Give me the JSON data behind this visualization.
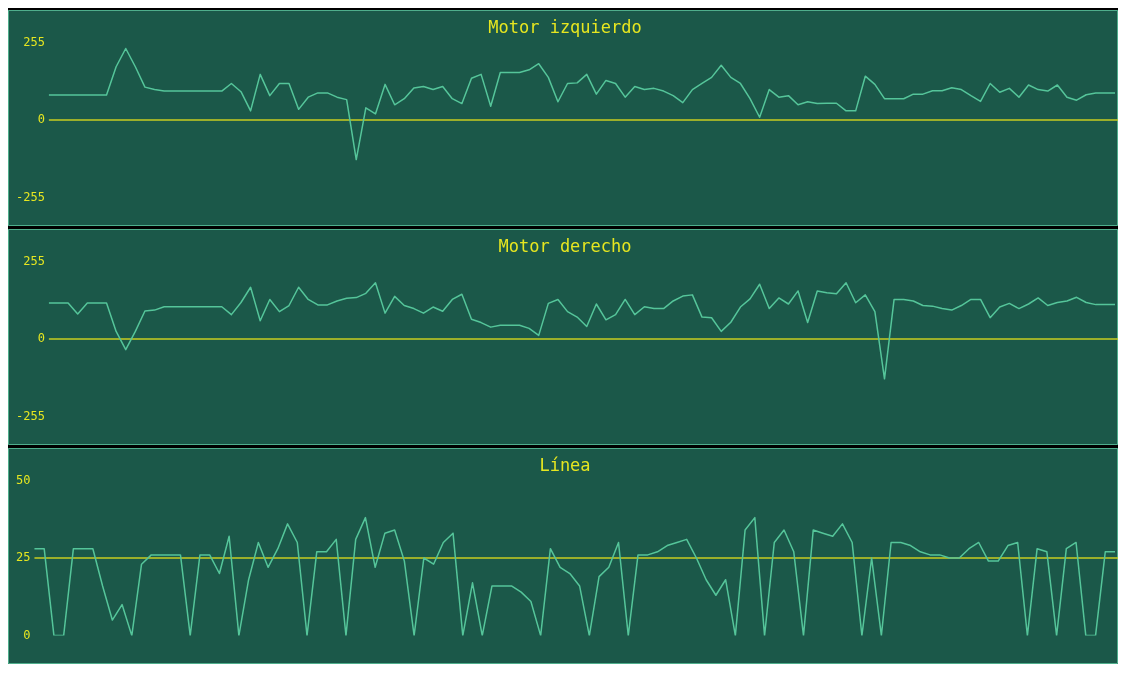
{
  "chart_data": [
    {
      "type": "line",
      "title": "Motor izquierdo",
      "categories": [
        null,
        null,
        null,
        null,
        null,
        null,
        null,
        null,
        null,
        null,
        null,
        null,
        null,
        null,
        null,
        null,
        null,
        null,
        null,
        null,
        null,
        null,
        null,
        null,
        null,
        null,
        null,
        null,
        null,
        null,
        null,
        null,
        null,
        null,
        null,
        null,
        null,
        null,
        null,
        null,
        null,
        null,
        null,
        null,
        null,
        null,
        null,
        null,
        null,
        null,
        null,
        null,
        null,
        null,
        null,
        null,
        null,
        null,
        null,
        null,
        null,
        null,
        null,
        null,
        null,
        null,
        null,
        null,
        null,
        null,
        null,
        null,
        null,
        null,
        null,
        null,
        null,
        null,
        null,
        null,
        null,
        null,
        null,
        null,
        null,
        null,
        null,
        null,
        null,
        null,
        null,
        null,
        null,
        null,
        null,
        null,
        null,
        null,
        null,
        null,
        null,
        null,
        null,
        null,
        null,
        null,
        null,
        null,
        null,
        null,
        null,
        null
      ],
      "series": [
        {
          "color": "#55c59a",
          "values": [
            82,
            82,
            82,
            82,
            82,
            82,
            82,
            175,
            235,
            175,
            108,
            100,
            95,
            95,
            95,
            95,
            95,
            95,
            95,
            120,
            93,
            30,
            150,
            80,
            120,
            120,
            35,
            75,
            89,
            89,
            75,
            67,
            -130,
            40,
            20,
            117,
            50,
            70,
            105,
            110,
            100,
            110,
            70,
            54,
            137,
            150,
            45,
            156,
            156,
            156,
            165,
            185,
            140,
            60,
            120,
            122,
            150,
            85,
            130,
            120,
            75,
            110,
            100,
            104,
            95,
            80,
            57,
            100,
            120,
            140,
            180,
            140,
            120,
            70,
            9,
            100,
            75,
            80,
            50,
            60,
            54,
            55,
            55,
            30,
            30,
            144,
            117,
            70,
            70,
            70,
            85,
            85,
            96,
            96,
            106,
            100,
            80,
            61,
            120,
            91,
            104,
            75,
            115,
            100,
            95,
            115,
            75,
            65,
            83,
            89,
            89,
            89
          ]
        }
      ],
      "ylim": [
        -255,
        255
      ],
      "yticks": [
        -255,
        0,
        255
      ],
      "ref_lines": [
        {
          "axis": "y",
          "value": 0,
          "color": "#c8cc20"
        }
      ],
      "grid": false,
      "legend": false
    },
    {
      "type": "line",
      "title": "Motor derecho",
      "categories": [
        null,
        null,
        null,
        null,
        null,
        null,
        null,
        null,
        null,
        null,
        null,
        null,
        null,
        null,
        null,
        null,
        null,
        null,
        null,
        null,
        null,
        null,
        null,
        null,
        null,
        null,
        null,
        null,
        null,
        null,
        null,
        null,
        null,
        null,
        null,
        null,
        null,
        null,
        null,
        null,
        null,
        null,
        null,
        null,
        null,
        null,
        null,
        null,
        null,
        null,
        null,
        null,
        null,
        null,
        null,
        null,
        null,
        null,
        null,
        null,
        null,
        null,
        null,
        null,
        null,
        null,
        null,
        null,
        null,
        null,
        null,
        null,
        null,
        null,
        null,
        null,
        null,
        null,
        null,
        null,
        null,
        null,
        null,
        null,
        null,
        null,
        null,
        null,
        null,
        null,
        null,
        null,
        null,
        null,
        null,
        null,
        null,
        null,
        null,
        null,
        null,
        null,
        null,
        null,
        null,
        null,
        null,
        null,
        null,
        null,
        null,
        null
      ],
      "series": [
        {
          "color": "#55c59a",
          "values": [
            118,
            118,
            118,
            82,
            118,
            118,
            118,
            25,
            -35,
            25,
            92,
            95,
            106,
            106,
            106,
            106,
            106,
            106,
            106,
            80,
            120,
            170,
            60,
            130,
            90,
            110,
            170,
            130,
            112,
            112,
            125,
            134,
            136,
            150,
            185,
            85,
            140,
            110,
            100,
            85,
            105,
            91,
            130,
            147,
            65,
            54,
            39,
            45,
            45,
            45,
            35,
            12,
            117,
            130,
            90,
            72,
            41,
            115,
            63,
            80,
            130,
            80,
            106,
            100,
            100,
            125,
            141,
            145,
            72,
            70,
            25,
            55,
            105,
            132,
            180,
            100,
            135,
            115,
            158,
            54,
            158,
            152,
            149,
            185,
            119,
            145,
            90,
            -131,
            130,
            130,
            125,
            110,
            108,
            100,
            95,
            110,
            130,
            130,
            70,
            105,
            117,
            100,
            115,
            135,
            110,
            120,
            125,
            137,
            120,
            113,
            113,
            113
          ]
        }
      ],
      "ylim": [
        -255,
        255
      ],
      "yticks": [
        -255,
        0,
        255
      ],
      "ref_lines": [
        {
          "axis": "y",
          "value": 0,
          "color": "#c8cc20"
        }
      ],
      "grid": false,
      "legend": false
    },
    {
      "type": "line",
      "title": "Línea",
      "categories": [
        null,
        null,
        null,
        null,
        null,
        null,
        null,
        null,
        null,
        null,
        null,
        null,
        null,
        null,
        null,
        null,
        null,
        null,
        null,
        null,
        null,
        null,
        null,
        null,
        null,
        null,
        null,
        null,
        null,
        null,
        null,
        null,
        null,
        null,
        null,
        null,
        null,
        null,
        null,
        null,
        null,
        null,
        null,
        null,
        null,
        null,
        null,
        null,
        null,
        null,
        null,
        null,
        null,
        null,
        null,
        null,
        null,
        null,
        null,
        null,
        null,
        null,
        null,
        null,
        null,
        null,
        null,
        null,
        null,
        null,
        null,
        null,
        null,
        null,
        null,
        null,
        null,
        null,
        null,
        null,
        null,
        null,
        null,
        null,
        null,
        null,
        null,
        null,
        null,
        null,
        null,
        null,
        null,
        null,
        null,
        null,
        null,
        null,
        null,
        null,
        null,
        null,
        null,
        null,
        null,
        null,
        null,
        null,
        null,
        null,
        null,
        null
      ],
      "series": [
        {
          "color": "#55c59a",
          "values": [
            28,
            28,
            0,
            0,
            28,
            28,
            28,
            16,
            5,
            10,
            0,
            23,
            26,
            26,
            26,
            26,
            0,
            26,
            26,
            20,
            32,
            0,
            18,
            30,
            22,
            28,
            36,
            30,
            0,
            27,
            27,
            31,
            0,
            31,
            38,
            22,
            33,
            34,
            24,
            0,
            25,
            23,
            30,
            33,
            0,
            17,
            0,
            16,
            16,
            16,
            14,
            11,
            0,
            28,
            22,
            20,
            16,
            0,
            19,
            22,
            30,
            0,
            26,
            26,
            27,
            29,
            30,
            31,
            25,
            18,
            13,
            18,
            0,
            34,
            38,
            0,
            30,
            34,
            27,
            0,
            34,
            33,
            32,
            36,
            30,
            0,
            25,
            0,
            30,
            30,
            29,
            27,
            26,
            26,
            25,
            25,
            28,
            30,
            24,
            24,
            29,
            30,
            0,
            28,
            27,
            0,
            28,
            30,
            0,
            0,
            27,
            27
          ]
        }
      ],
      "ylim": [
        0,
        50
      ],
      "yticks": [
        0,
        25,
        50
      ],
      "ref_lines": [
        {
          "axis": "y",
          "value": 25,
          "color": "#c8cc20"
        }
      ],
      "grid": false,
      "legend": false
    }
  ]
}
